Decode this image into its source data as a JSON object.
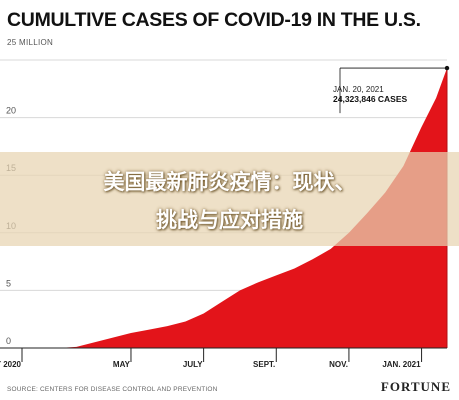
{
  "chart_data": {
    "type": "area",
    "title": "CUMULTIVE CASES OF COVID-19 IN THE U.S.",
    "ylabel": "25 MILLION",
    "y_ticks": [
      0,
      5,
      10,
      15,
      20,
      25
    ],
    "y_tick_labels": [
      "0",
      "5",
      "10",
      "15",
      "20",
      ""
    ],
    "ylim": [
      0,
      25
    ],
    "x_tick_labels": [
      "FEBRUARY 2020",
      "MAY",
      "JULY",
      "SEPT.",
      "NOV.",
      "JAN. 2021"
    ],
    "x_tick_positions": [
      0,
      3,
      5,
      7,
      9,
      11
    ],
    "xlim": [
      0,
      11.7
    ],
    "grid": true,
    "series": [
      {
        "color": "#e3141a",
        "x": [
          0,
          0.5,
          1,
          1.5,
          2,
          2.5,
          3,
          3.5,
          4,
          4.5,
          5,
          5.5,
          6,
          6.5,
          7,
          7.5,
          8,
          8.5,
          9,
          9.5,
          10,
          10.5,
          11,
          11.4,
          11.7
        ],
        "values": [
          0,
          0,
          0,
          0.1,
          0.5,
          0.9,
          1.3,
          1.6,
          1.9,
          2.3,
          3.0,
          4.0,
          5.0,
          5.7,
          6.3,
          6.9,
          7.7,
          8.6,
          10.0,
          11.7,
          13.5,
          15.8,
          19.2,
          21.7,
          24.3
        ]
      }
    ],
    "annotation": {
      "date": "JAN. 20, 2021",
      "value": "24,323,846 CASES",
      "x": 11.7,
      "y": 24.3
    }
  },
  "banner": {
    "line1": "美国最新肺炎疫情：现状、",
    "line2": "挑战与应对措施"
  },
  "source": "SOURCE: CENTERS FOR DISEASE CONTROL AND PREVENTION",
  "brand": "FORTUNE",
  "colors": {
    "area": "#e3141a",
    "axis": "#222222",
    "grid": "#d8d8d8"
  }
}
